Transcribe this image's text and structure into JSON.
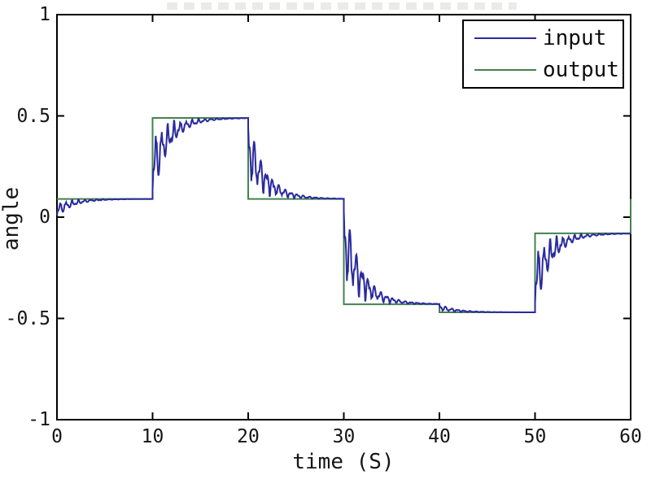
{
  "figure": {
    "xlabel": "time (S)",
    "ylabel": "angle",
    "x_tick_labels": [
      "0",
      "10",
      "20",
      "30",
      "40",
      "50",
      "60"
    ],
    "y_tick_labels": [
      "-1",
      "-0.5",
      "0",
      "0.5",
      "1"
    ],
    "frame_color": "#000000",
    "background": "#ffffff"
  },
  "legend": {
    "items": [
      {
        "label": "input",
        "color": "#2a2aa0"
      },
      {
        "label": "output",
        "color": "#46824f"
      }
    ]
  },
  "chart_data": {
    "type": "line",
    "title": "",
    "xlabel": "time (S)",
    "ylabel": "angle",
    "xlim": [
      0,
      60
    ],
    "ylim": [
      -1,
      1
    ],
    "x_ticks": [
      0,
      10,
      20,
      30,
      40,
      50,
      60
    ],
    "y_ticks": [
      -1,
      -0.5,
      0,
      0.5,
      1
    ],
    "grid": false,
    "legend_position": "top-right",
    "series": [
      {
        "name": "output",
        "color": "#46824f",
        "line_width": 2,
        "shape": "step",
        "steps": [
          {
            "t": 0,
            "level": 0.09
          },
          {
            "t": 10,
            "level": 0.49
          },
          {
            "t": 20,
            "level": 0.09
          },
          {
            "t": 30,
            "level": -0.43
          },
          {
            "t": 40,
            "level": -0.47
          },
          {
            "t": 50,
            "level": -0.08
          },
          {
            "t": 60,
            "level": 0.09
          }
        ]
      },
      {
        "name": "input",
        "color": "#2a2aa0",
        "line_width": 2,
        "shape": "ringing-step-response",
        "initial_value": 0,
        "follows_steps_of": "output",
        "ringing": {
          "decay_rate": 0.55,
          "spike_rate_rad_s": 4.9,
          "secondary_rate_rad_s": 8.6,
          "secondary_mix": 0.3,
          "secondary_phase": 0.9,
          "sample_dt": 0.04
        }
      }
    ]
  }
}
